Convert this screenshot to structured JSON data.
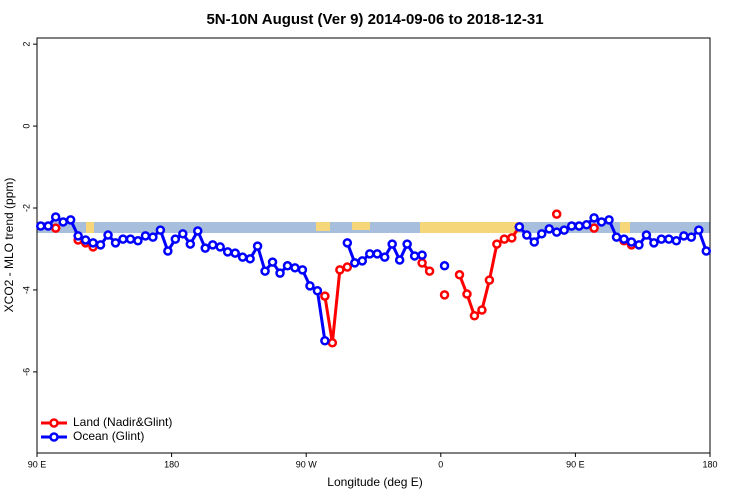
{
  "chart_data": {
    "type": "line",
    "title": "5N-10N August (Ver 9)   2014-09-06 to 2018-12-31",
    "x_label": "Longitude (deg E)",
    "y_label": "XCO2 - MLO trend (ppm)",
    "xlim": [
      90,
      540
    ],
    "ylim": [
      -7.98,
      2.15
    ],
    "xticks": [
      {
        "value": 90,
        "label": "90 E"
      },
      180,
      {
        "value": 270,
        "label": "90 W"
      },
      {
        "value": 360,
        "label": "0"
      },
      {
        "value": 450,
        "label": "90 E"
      },
      {
        "value": 540,
        "label": "180"
      }
    ],
    "yticks": [
      -6,
      -4,
      -2,
      0,
      2
    ],
    "legend": "bottom-left",
    "x": [
      92.5,
      97.5,
      102.5,
      107.5,
      112.5,
      117.5,
      122.5,
      127.5,
      132.5,
      137.5,
      142.5,
      147.5,
      152.5,
      157.5,
      162.5,
      167.5,
      172.5,
      177.5,
      182.5,
      187.5,
      192.5,
      197.5,
      202.5,
      207.5,
      212.5,
      217.5,
      222.5,
      227.5,
      232.5,
      237.5,
      242.5,
      247.5,
      252.5,
      257.5,
      262.5,
      267.5,
      272.5,
      277.5,
      282.5,
      287.5,
      292.5,
      297.5,
      302.5,
      307.5,
      312.5,
      317.5,
      322.5,
      327.5,
      332.5,
      337.5,
      342.5,
      347.5,
      352.5,
      357.5,
      362.5,
      367.5,
      372.5,
      377.5,
      382.5,
      387.5,
      392.5,
      397.5,
      402.5,
      407.5,
      412.5,
      417.5,
      422.5,
      427.5,
      432.5,
      437.5,
      442.5,
      447.5,
      452.5,
      457.5,
      462.5,
      467.5,
      472.5,
      477.5,
      482.5,
      487.5,
      492.5,
      497.5,
      502.5,
      507.5,
      512.5,
      517.5,
      522.5,
      527.5,
      532.5,
      537.5
    ],
    "series": [
      {
        "name": "Land (Nadir&Glint)",
        "color": "#ff0000",
        "values": [
          null,
          null,
          -2.49,
          null,
          null,
          -2.78,
          -2.85,
          -2.95,
          null,
          null,
          null,
          null,
          null,
          null,
          null,
          null,
          null,
          null,
          null,
          null,
          null,
          null,
          null,
          null,
          null,
          null,
          null,
          null,
          null,
          null,
          null,
          null,
          null,
          null,
          null,
          null,
          null,
          null,
          -4.15,
          -5.29,
          -3.51,
          -3.44,
          null,
          null,
          null,
          null,
          null,
          null,
          null,
          null,
          null,
          -3.34,
          -3.54,
          null,
          -4.12,
          null,
          -3.63,
          -4.1,
          -4.63,
          -4.49,
          -3.76,
          -2.88,
          -2.76,
          -2.73,
          -2.46,
          null,
          null,
          null,
          null,
          -2.15,
          null,
          null,
          null,
          null,
          -2.49,
          null,
          null,
          null,
          -2.8,
          -2.9,
          null,
          null,
          null,
          null,
          null,
          null,
          null,
          null,
          null,
          null
        ]
      },
      {
        "name": "Ocean (Glint)",
        "color": "#0000ff",
        "values": [
          -2.44,
          -2.44,
          -2.22,
          -2.34,
          -2.29,
          -2.68,
          -2.78,
          -2.85,
          -2.9,
          -2.66,
          -2.85,
          -2.76,
          -2.76,
          -2.8,
          -2.68,
          -2.71,
          -2.54,
          -3.05,
          -2.76,
          -2.63,
          -2.88,
          -2.56,
          -2.98,
          -2.9,
          -2.95,
          -3.07,
          -3.1,
          -3.2,
          -3.24,
          -2.93,
          -3.54,
          -3.32,
          -3.59,
          -3.41,
          -3.46,
          -3.51,
          -3.9,
          -4.02,
          -5.24,
          null,
          null,
          -2.85,
          -3.34,
          -3.29,
          -3.12,
          -3.12,
          -3.2,
          -2.88,
          -3.27,
          -2.88,
          -3.17,
          -3.15,
          null,
          null,
          -3.41,
          null,
          null,
          null,
          null,
          null,
          null,
          null,
          null,
          null,
          -2.46,
          -2.66,
          -2.83,
          -2.63,
          -2.51,
          -2.59,
          -2.54,
          -2.44,
          -2.44,
          -2.41,
          -2.24,
          -2.34,
          -2.29,
          -2.71,
          -2.76,
          -2.83,
          -2.9,
          -2.66,
          -2.85,
          -2.76,
          -2.76,
          -2.8,
          -2.68,
          -2.71,
          -2.54,
          -3.05
        ]
      }
    ]
  }
}
